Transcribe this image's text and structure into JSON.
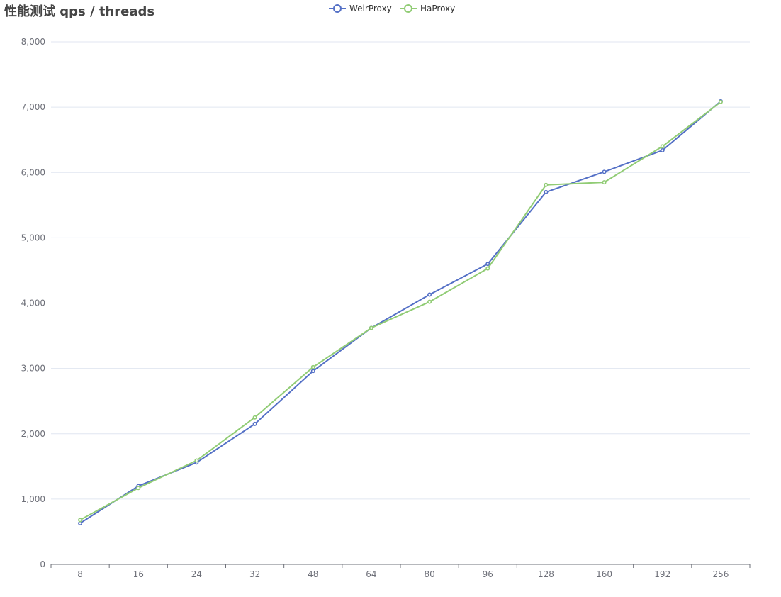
{
  "title": "性能测试 qps / threads",
  "colors": {
    "weirproxy": "#5470c6",
    "haproxy": "#91cc75",
    "grid": "#e0e6f1",
    "axis": "#6e7079"
  },
  "chart_data": {
    "type": "line",
    "title": "性能测试 qps / threads",
    "categories": [
      "8",
      "16",
      "24",
      "32",
      "48",
      "64",
      "80",
      "96",
      "128",
      "160",
      "192",
      "256"
    ],
    "ylim": [
      0,
      8000
    ],
    "yticks": [
      "0",
      "1,000",
      "2,000",
      "3,000",
      "4,000",
      "5,000",
      "6,000",
      "7,000",
      "8,000"
    ],
    "grid": true,
    "legend_position": "top-center",
    "series": [
      {
        "name": "WeirProxy",
        "color": "#5470c6",
        "values": [
          630,
          1200,
          1560,
          2150,
          2960,
          3620,
          4130,
          4600,
          5700,
          6010,
          6340,
          7090
        ]
      },
      {
        "name": "HaProxy",
        "color": "#91cc75",
        "values": [
          680,
          1170,
          1590,
          2250,
          3020,
          3620,
          4020,
          4530,
          5810,
          5850,
          6400,
          7080
        ]
      }
    ]
  }
}
